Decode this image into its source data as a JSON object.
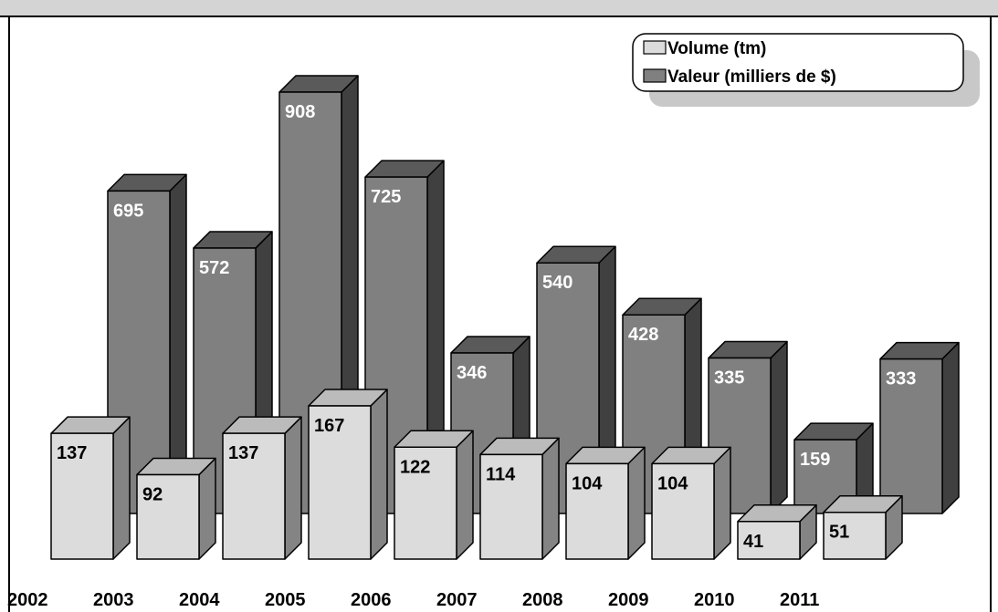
{
  "chart_data": {
    "type": "bar3d",
    "categories": [
      "2002",
      "2003",
      "2004",
      "2005",
      "2006",
      "2007",
      "2008",
      "2009",
      "2010",
      "2011"
    ],
    "series": [
      {
        "name": "Volume (tm)",
        "color": "#dcdcdc",
        "values": [
          137,
          92,
          137,
          167,
          122,
          114,
          104,
          104,
          41,
          51
        ]
      },
      {
        "name": "Valeur (milliers de $)",
        "color": "#808080",
        "values": [
          695,
          572,
          908,
          725,
          346,
          540,
          428,
          335,
          159,
          333
        ]
      }
    ],
    "legend": "top-right"
  }
}
